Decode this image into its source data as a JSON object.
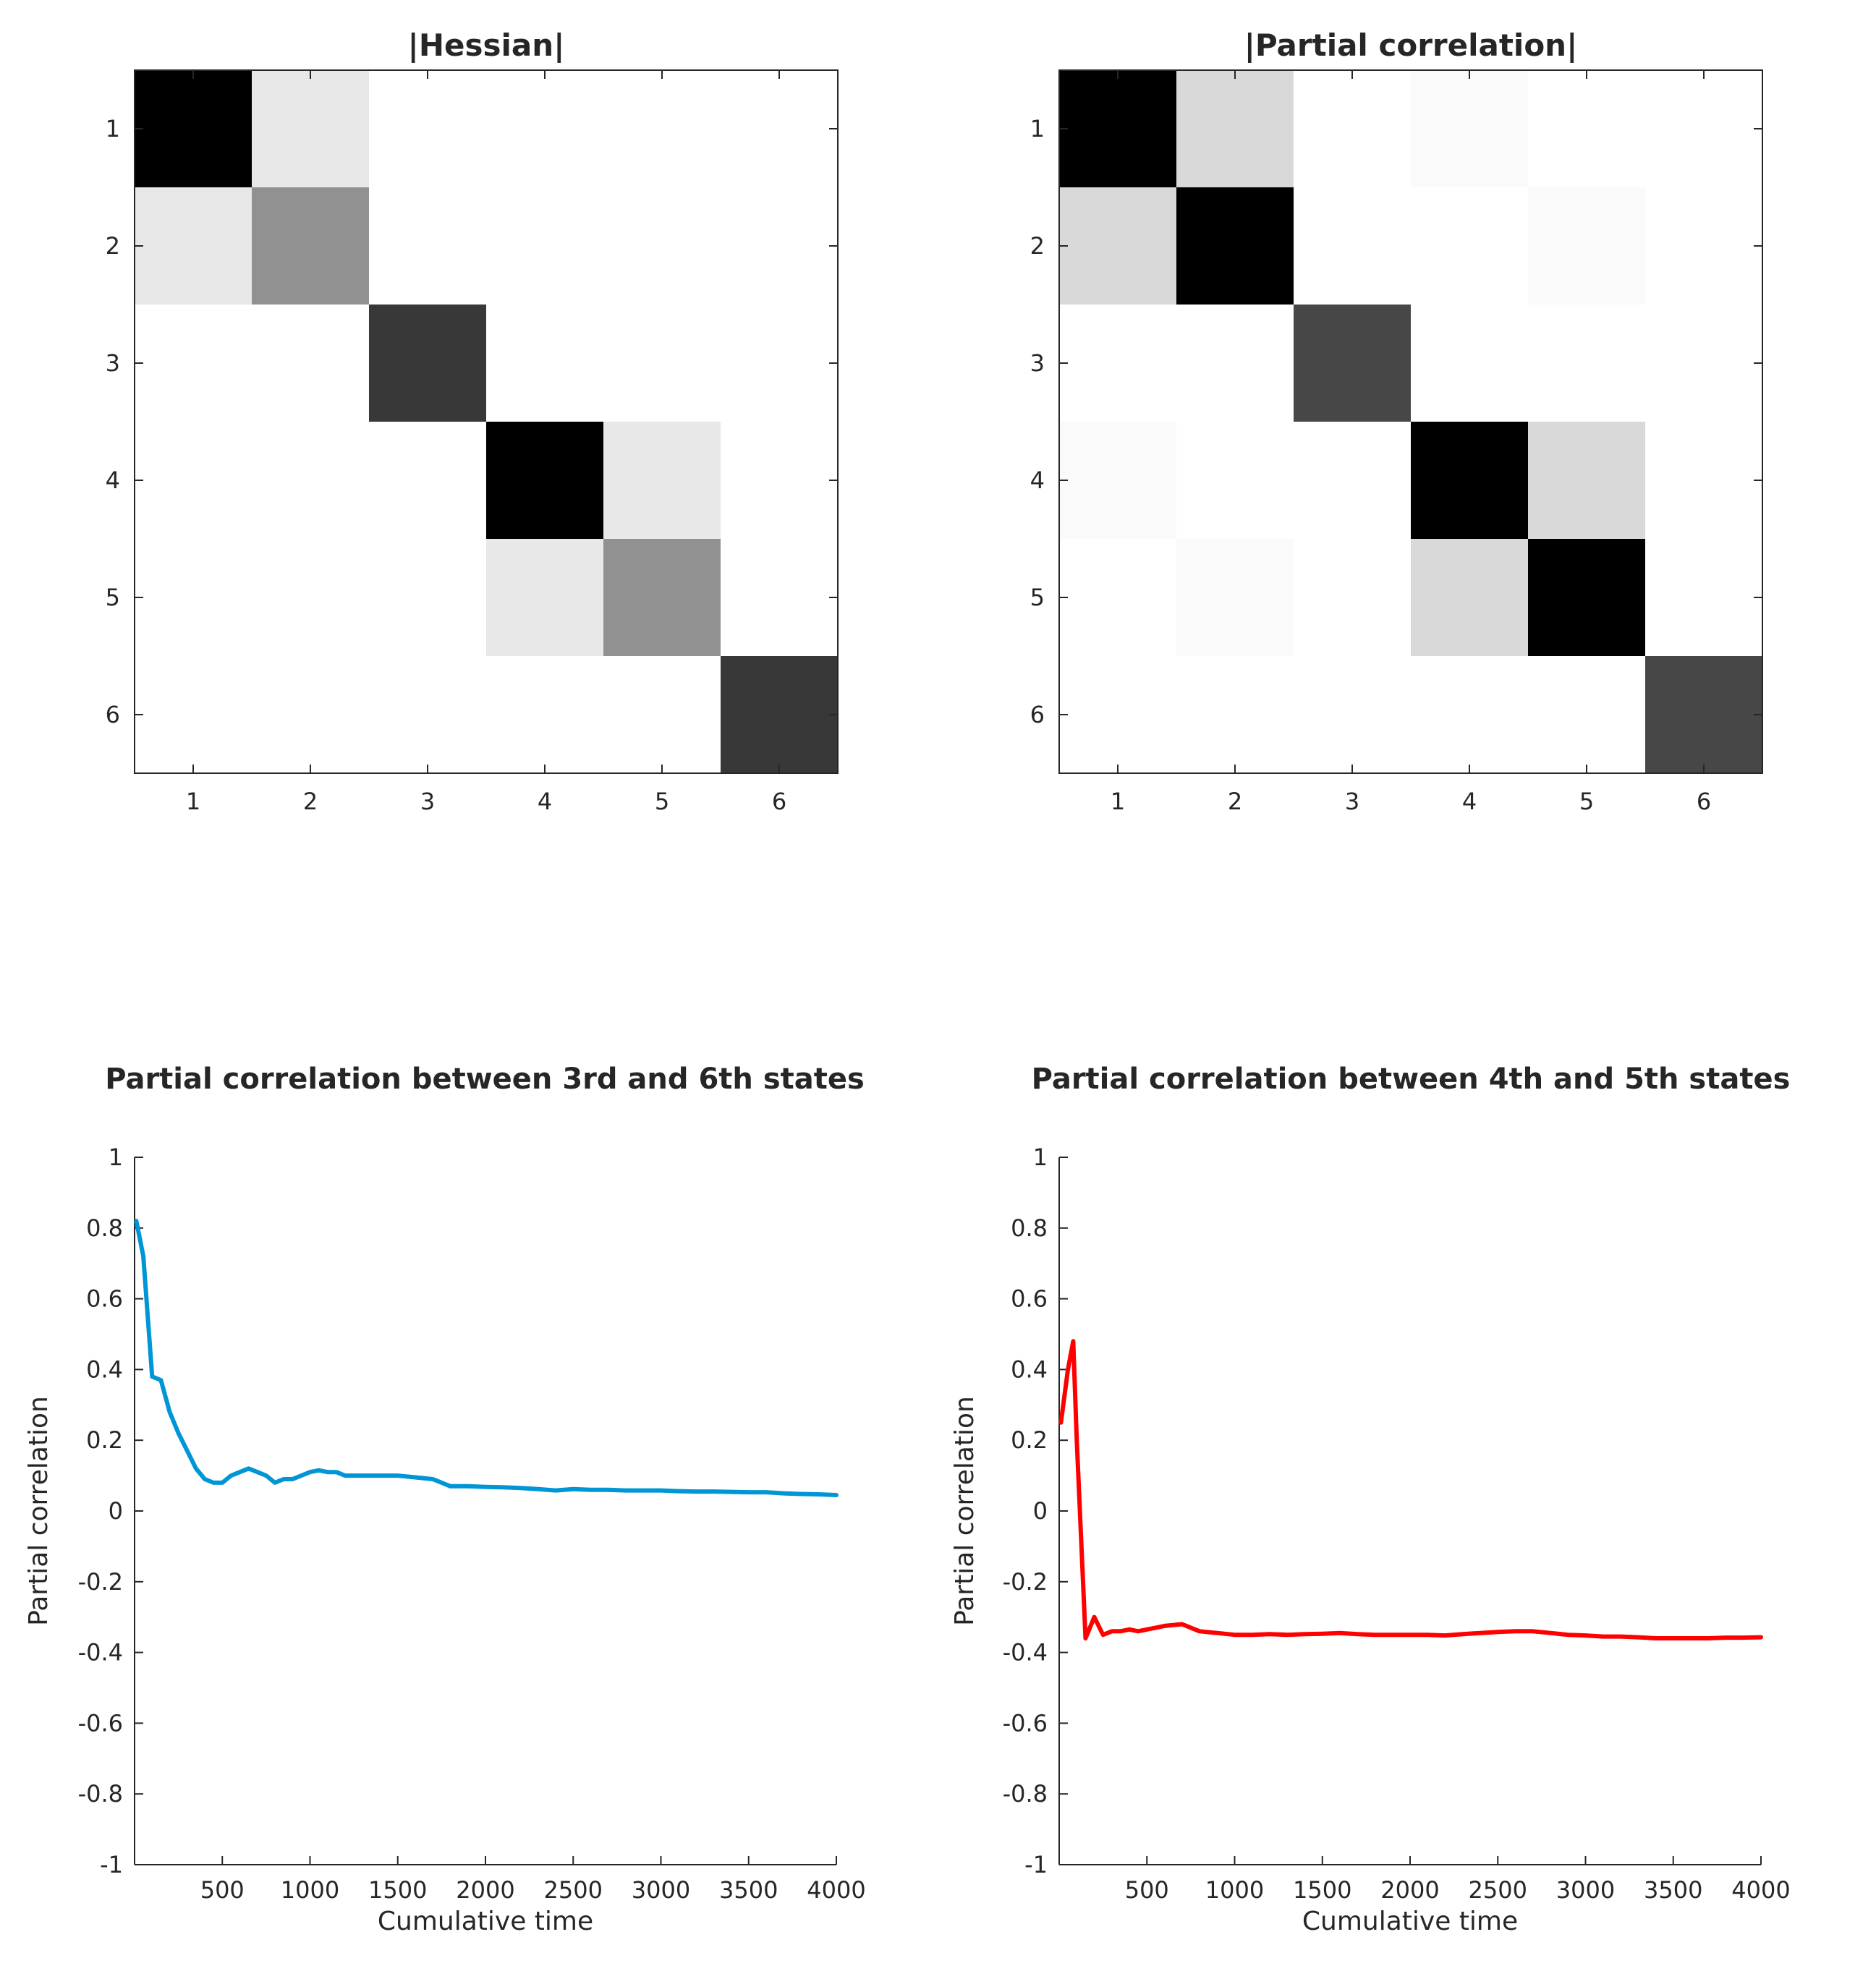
{
  "chart_data": [
    {
      "type": "heatmap",
      "title": "|Hessian|",
      "row_labels": [
        "1",
        "2",
        "3",
        "4",
        "5",
        "6"
      ],
      "col_labels": [
        "1",
        "2",
        "3",
        "4",
        "5",
        "6"
      ],
      "colormap": "gray-reversed (0 = white, 1 = black)",
      "values": [
        [
          1.0,
          0.09,
          0.0,
          0.0,
          0.0,
          0.0
        ],
        [
          0.09,
          0.43,
          0.0,
          0.0,
          0.0,
          0.0
        ],
        [
          0.0,
          0.0,
          0.78,
          0.0,
          0.0,
          0.0
        ],
        [
          0.0,
          0.0,
          0.0,
          1.0,
          0.09,
          0.0
        ],
        [
          0.0,
          0.0,
          0.0,
          0.09,
          0.43,
          0.0
        ],
        [
          0.0,
          0.0,
          0.0,
          0.0,
          0.0,
          0.78
        ]
      ]
    },
    {
      "type": "heatmap",
      "title": "|Partial correlation|",
      "row_labels": [
        "1",
        "2",
        "3",
        "4",
        "5",
        "6"
      ],
      "col_labels": [
        "1",
        "2",
        "3",
        "4",
        "5",
        "6"
      ],
      "colormap": "gray-reversed (0 = white, 1 = black)",
      "values": [
        [
          1.0,
          0.15,
          0.0,
          0.02,
          0.0,
          0.0
        ],
        [
          0.15,
          1.0,
          0.0,
          0.0,
          0.02,
          0.0
        ],
        [
          0.0,
          0.0,
          0.72,
          0.0,
          0.0,
          0.0
        ],
        [
          0.02,
          0.0,
          0.0,
          1.0,
          0.15,
          0.0
        ],
        [
          0.0,
          0.02,
          0.0,
          0.15,
          1.0,
          0.0
        ],
        [
          0.0,
          0.0,
          0.0,
          0.0,
          0.0,
          0.72
        ]
      ]
    },
    {
      "type": "line",
      "title": "Partial correlation between 3rd and 6th states",
      "xlabel": "Cumulative time",
      "ylabel": "Partial correlation",
      "xlim": [
        0,
        4000
      ],
      "ylim": [
        -1,
        1
      ],
      "xticks": [
        500,
        1000,
        1500,
        2000,
        2500,
        3000,
        3500,
        4000
      ],
      "yticks": [
        1,
        0.8,
        0.6,
        0.4,
        0.2,
        0,
        -0.2,
        -0.4,
        -0.6,
        -0.8,
        -1
      ],
      "grid": false,
      "series": [
        {
          "color": "#0096d6",
          "x": [
            10,
            50,
            100,
            150,
            200,
            250,
            300,
            350,
            400,
            450,
            500,
            550,
            600,
            650,
            700,
            750,
            800,
            850,
            900,
            950,
            1000,
            1050,
            1100,
            1150,
            1200,
            1300,
            1400,
            1500,
            1600,
            1700,
            1800,
            1900,
            2000,
            2100,
            2200,
            2300,
            2400,
            2500,
            2600,
            2700,
            2800,
            2900,
            3000,
            3100,
            3200,
            3300,
            3400,
            3500,
            3600,
            3700,
            3800,
            3900,
            4000
          ],
          "y": [
            0.82,
            0.72,
            0.38,
            0.37,
            0.28,
            0.22,
            0.17,
            0.12,
            0.09,
            0.08,
            0.08,
            0.1,
            0.11,
            0.12,
            0.11,
            0.1,
            0.08,
            0.09,
            0.09,
            0.1,
            0.11,
            0.115,
            0.11,
            0.11,
            0.1,
            0.1,
            0.1,
            0.1,
            0.095,
            0.09,
            0.07,
            0.07,
            0.068,
            0.067,
            0.065,
            0.062,
            0.058,
            0.062,
            0.06,
            0.06,
            0.058,
            0.058,
            0.058,
            0.056,
            0.055,
            0.055,
            0.054,
            0.053,
            0.053,
            0.05,
            0.048,
            0.047,
            0.045
          ]
        }
      ]
    },
    {
      "type": "line",
      "title": "Partial correlation between 4th and 5th states",
      "xlabel": "Cumulative time",
      "ylabel": "Partial correlation",
      "xlim": [
        0,
        4000
      ],
      "ylim": [
        -1,
        1
      ],
      "xticks": [
        500,
        1000,
        1500,
        2000,
        2500,
        3000,
        3500,
        4000
      ],
      "yticks": [
        1,
        0.8,
        0.6,
        0.4,
        0.2,
        0,
        -0.2,
        -0.4,
        -0.6,
        -0.8,
        -1
      ],
      "grid": false,
      "series": [
        {
          "color": "#ff0000",
          "x": [
            10,
            50,
            80,
            100,
            150,
            200,
            250,
            300,
            350,
            400,
            450,
            500,
            550,
            600,
            700,
            800,
            900,
            1000,
            1100,
            1200,
            1300,
            1400,
            1500,
            1600,
            1700,
            1800,
            1900,
            2000,
            2100,
            2200,
            2300,
            2400,
            2500,
            2600,
            2700,
            2800,
            2900,
            3000,
            3100,
            3200,
            3300,
            3400,
            3500,
            3600,
            3700,
            3800,
            3900,
            4000
          ],
          "y": [
            0.25,
            0.4,
            0.48,
            0.2,
            -0.36,
            -0.3,
            -0.35,
            -0.34,
            -0.34,
            -0.335,
            -0.34,
            -0.335,
            -0.33,
            -0.325,
            -0.32,
            -0.34,
            -0.345,
            -0.35,
            -0.35,
            -0.348,
            -0.35,
            -0.348,
            -0.347,
            -0.345,
            -0.348,
            -0.35,
            -0.35,
            -0.35,
            -0.35,
            -0.352,
            -0.348,
            -0.345,
            -0.342,
            -0.34,
            -0.34,
            -0.345,
            -0.35,
            -0.352,
            -0.355,
            -0.355,
            -0.357,
            -0.36,
            -0.36,
            -0.36,
            -0.36,
            -0.358,
            -0.358,
            -0.357
          ]
        }
      ]
    }
  ]
}
